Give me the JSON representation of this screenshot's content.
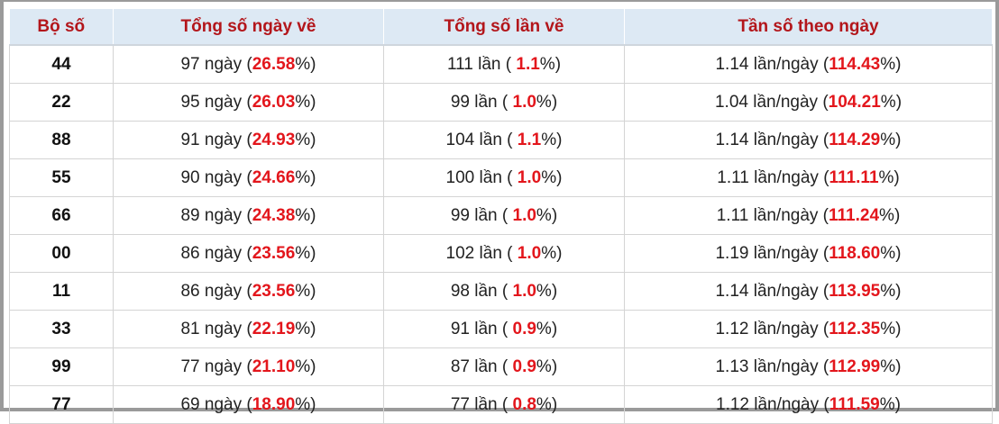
{
  "table": {
    "header": [
      "Bộ số",
      "Tổng số ngày về",
      "Tổng số lần về",
      "Tần số theo ngày"
    ],
    "rows": [
      [
        "44",
        [
          "97 ngày (",
          "26.58",
          "%)"
        ],
        [
          "111 lần ( ",
          "1.1",
          "%)"
        ],
        [
          "1.14 lần/ngày (",
          "114.43",
          "%)"
        ]
      ],
      [
        "22",
        [
          "95 ngày (",
          "26.03",
          "%)"
        ],
        [
          "99 lần ( ",
          "1.0",
          "%)"
        ],
        [
          "1.04 lần/ngày (",
          "104.21",
          "%)"
        ]
      ],
      [
        "88",
        [
          "91 ngày (",
          "24.93",
          "%)"
        ],
        [
          "104 lần ( ",
          "1.1",
          "%)"
        ],
        [
          "1.14 lần/ngày (",
          "114.29",
          "%)"
        ]
      ],
      [
        "55",
        [
          "90 ngày (",
          "24.66",
          "%)"
        ],
        [
          "100 lần ( ",
          "1.0",
          "%)"
        ],
        [
          "1.11 lần/ngày (",
          "111.11",
          "%)"
        ]
      ],
      [
        "66",
        [
          "89 ngày (",
          "24.38",
          "%)"
        ],
        [
          "99 lần ( ",
          "1.0",
          "%)"
        ],
        [
          "1.11 lần/ngày (",
          "111.24",
          "%)"
        ]
      ],
      [
        "00",
        [
          "86 ngày (",
          "23.56",
          "%)"
        ],
        [
          "102 lần ( ",
          "1.0",
          "%)"
        ],
        [
          "1.19 lần/ngày (",
          "118.60",
          "%)"
        ]
      ],
      [
        "11",
        [
          "86 ngày (",
          "23.56",
          "%)"
        ],
        [
          "98 lần ( ",
          "1.0",
          "%)"
        ],
        [
          "1.14 lần/ngày (",
          "113.95",
          "%)"
        ]
      ],
      [
        "33",
        [
          "81 ngày (",
          "22.19",
          "%)"
        ],
        [
          "91 lần ( ",
          "0.9",
          "%)"
        ],
        [
          "1.12 lần/ngày (",
          "112.35",
          "%)"
        ]
      ],
      [
        "99",
        [
          "77 ngày (",
          "21.10",
          "%)"
        ],
        [
          "87 lần ( ",
          "0.9",
          "%)"
        ],
        [
          "1.13 lần/ngày (",
          "112.99",
          "%)"
        ]
      ],
      [
        "77",
        [
          "69 ngày (",
          "18.90",
          "%)"
        ],
        [
          "77 lần ( ",
          "0.8",
          "%)"
        ],
        [
          "1.12 lần/ngày (",
          "111.59",
          "%)"
        ]
      ]
    ]
  }
}
